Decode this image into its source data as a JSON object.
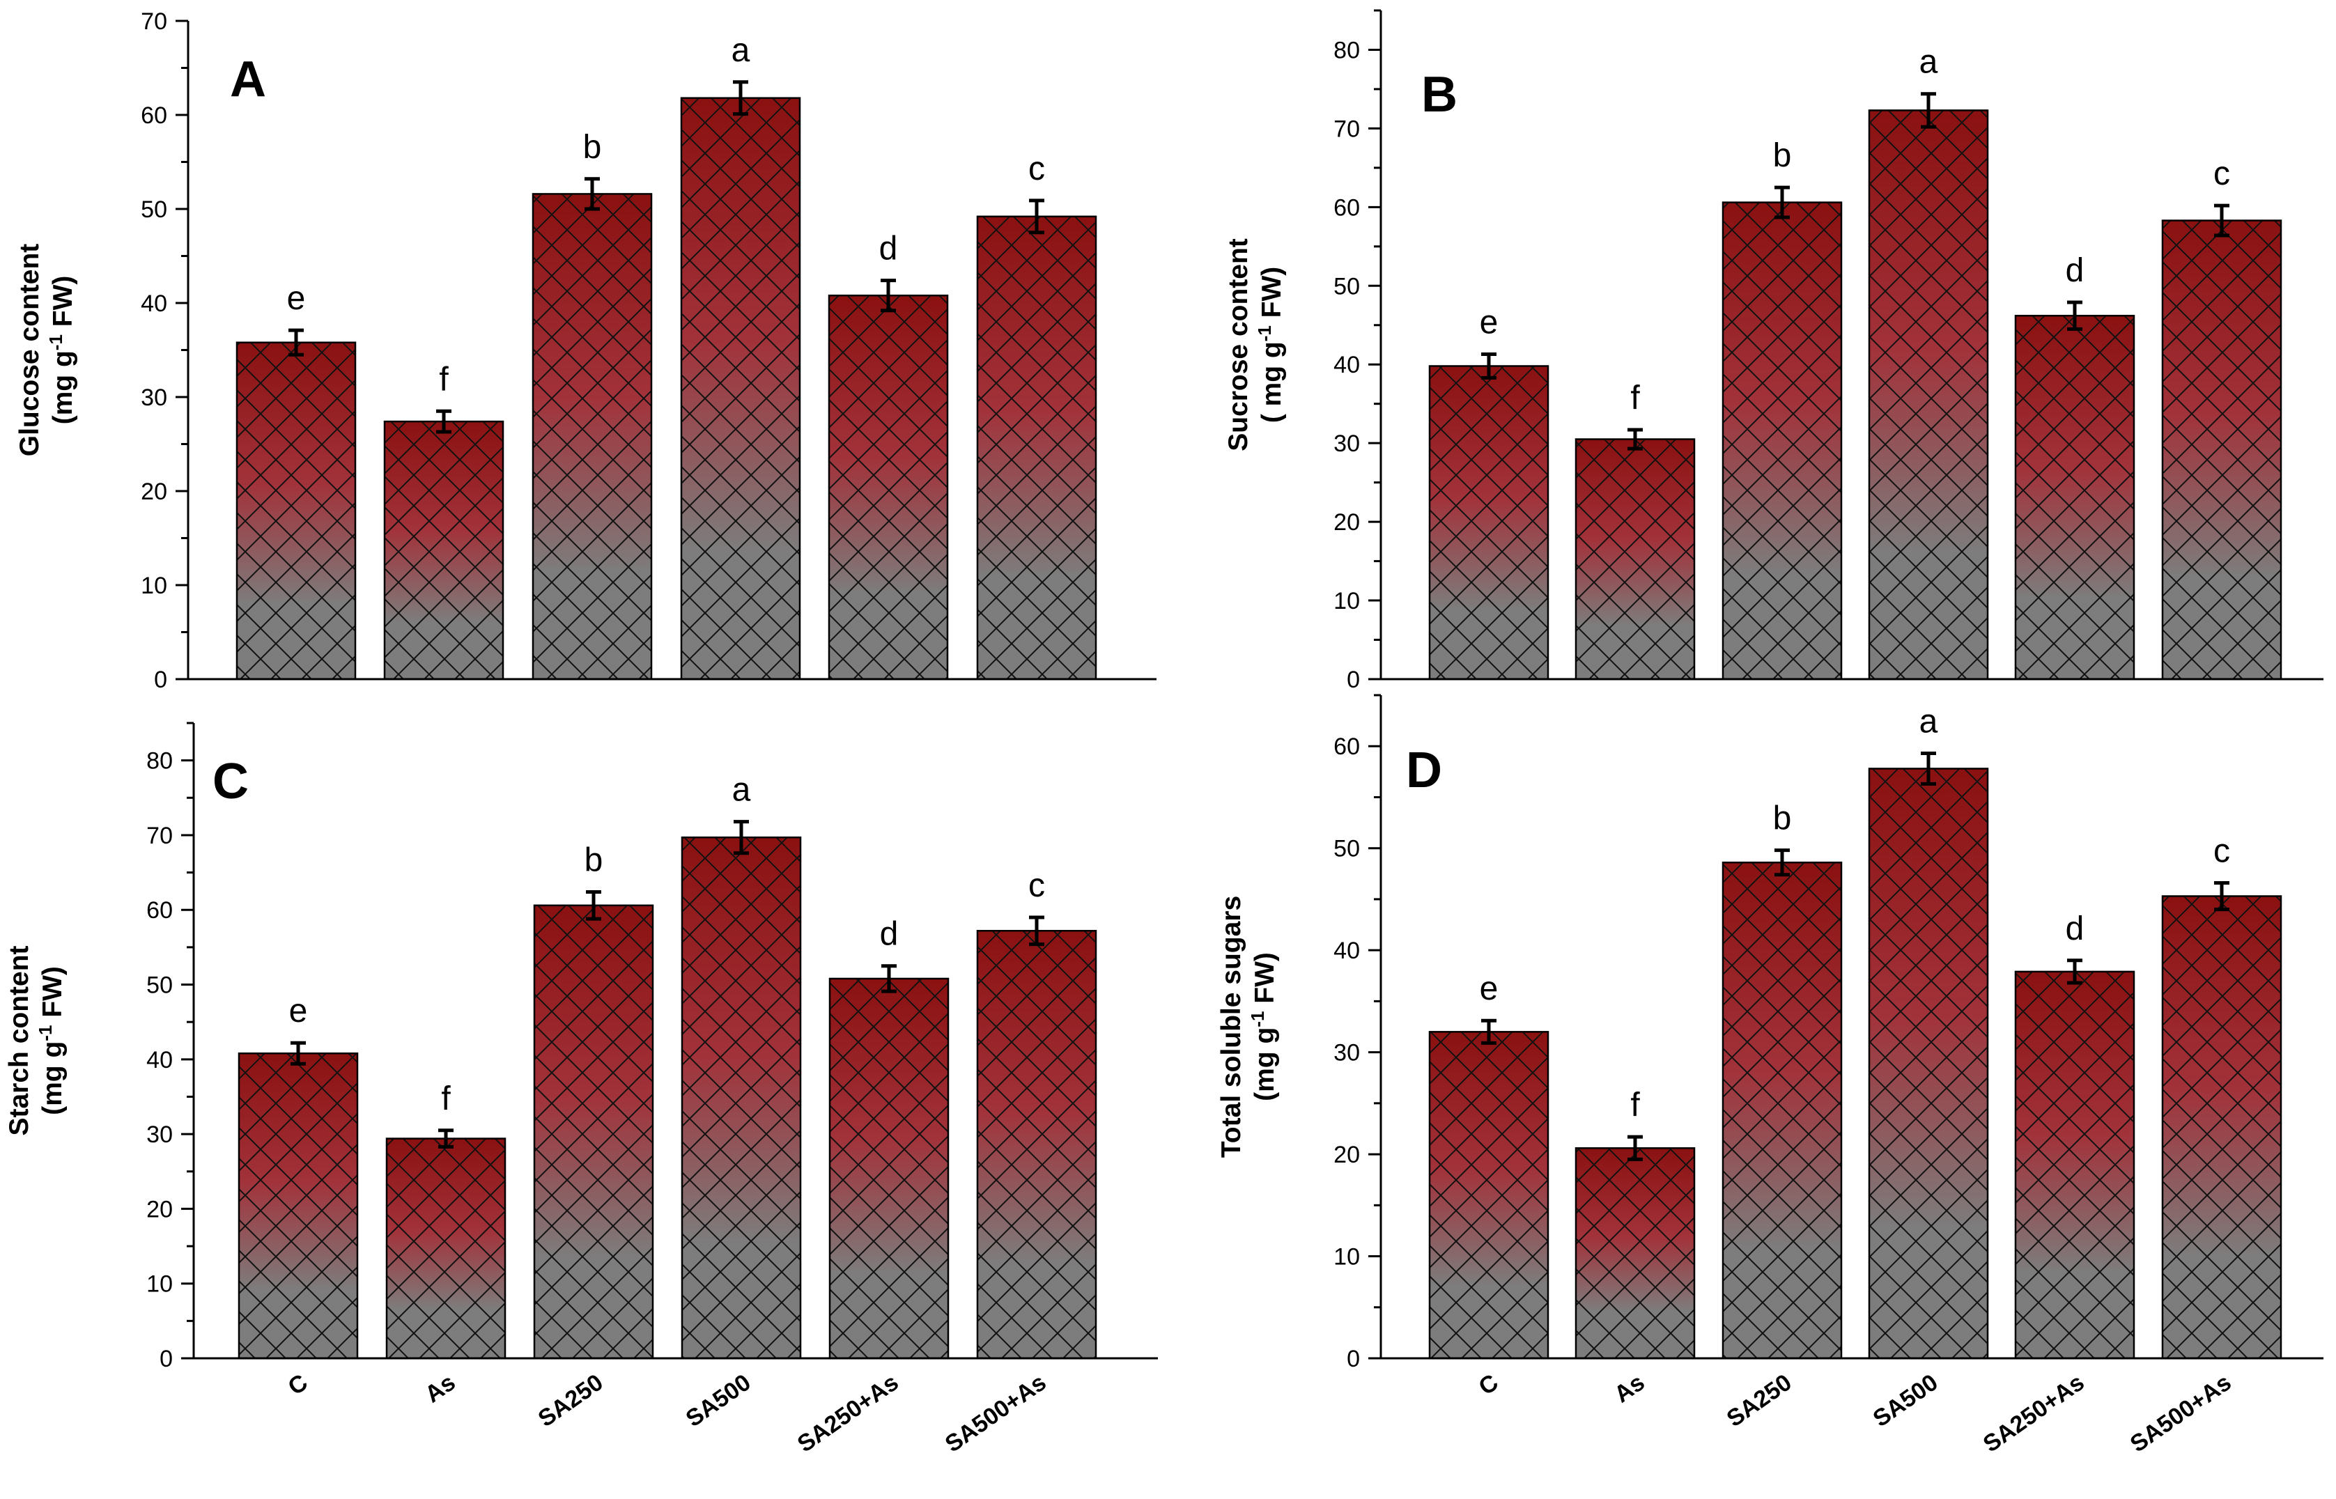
{
  "colors": {
    "bar_top": "#8b1111",
    "bar_mid": "#a2323a",
    "bar_bottom": "#7d7d7d",
    "hatch": "#111111"
  },
  "chart_data": [
    {
      "id": "A",
      "type": "bar",
      "panel_label": "A",
      "ylabel_line1": "Glucose content",
      "ylabel_pre": "(mg g",
      "ylabel_sup": "-1",
      "ylabel_post": " FW)",
      "categories": [
        "C",
        "As",
        "SA250",
        "SA500",
        "SA250+As",
        "SA500+As"
      ],
      "values": [
        35.8,
        27.4,
        51.6,
        61.8,
        40.8,
        49.2
      ],
      "errors": [
        1.3,
        1.1,
        1.6,
        1.7,
        1.6,
        1.7
      ],
      "significance": [
        "e",
        "f",
        "b",
        "a",
        "d",
        "c"
      ],
      "ylim": [
        0,
        70
      ],
      "yticks": [
        0,
        10,
        20,
        30,
        40,
        50,
        60,
        70
      ],
      "show_category_labels": false
    },
    {
      "id": "B",
      "type": "bar",
      "panel_label": "B",
      "ylabel_line1": "Sucrose content",
      "ylabel_pre": "( mg g",
      "ylabel_sup": "-1",
      "ylabel_post": " FW)",
      "categories": [
        "C",
        "As",
        "SA250",
        "SA500",
        "SA250+As",
        "SA500+As"
      ],
      "values": [
        39.8,
        30.5,
        60.6,
        72.3,
        46.2,
        58.3
      ],
      "errors": [
        1.5,
        1.2,
        1.9,
        2.1,
        1.7,
        1.9
      ],
      "significance": [
        "e",
        "f",
        "b",
        "a",
        "d",
        "c"
      ],
      "ylim": [
        0,
        85
      ],
      "yticks": [
        0,
        10,
        20,
        30,
        40,
        50,
        60,
        70,
        80
      ],
      "show_category_labels": false
    },
    {
      "id": "C",
      "type": "bar",
      "panel_label": "C",
      "ylabel_line1": "Starch content",
      "ylabel_pre": "(mg g",
      "ylabel_sup": "-1",
      "ylabel_post": " FW)",
      "categories": [
        "C",
        "As",
        "SA250",
        "SA500",
        "SA250+As",
        "SA500+As"
      ],
      "values": [
        40.8,
        29.4,
        60.6,
        69.7,
        50.8,
        57.2
      ],
      "errors": [
        1.4,
        1.1,
        1.8,
        2.1,
        1.7,
        1.8
      ],
      "significance": [
        "e",
        "f",
        "b",
        "a",
        "d",
        "c"
      ],
      "ylim": [
        0,
        85
      ],
      "yticks": [
        0,
        10,
        20,
        30,
        40,
        50,
        60,
        70,
        80
      ],
      "show_category_labels": true
    },
    {
      "id": "D",
      "type": "bar",
      "panel_label": "D",
      "ylabel_line1": "Total soluble sugars",
      "ylabel_pre": "(mg g",
      "ylabel_sup": "-1",
      "ylabel_post": " FW)",
      "categories": [
        "C",
        "As",
        "SA250",
        "SA500",
        "SA250+As",
        "SA500+As"
      ],
      "values": [
        32.0,
        20.6,
        48.6,
        57.8,
        37.9,
        45.3
      ],
      "errors": [
        1.1,
        1.1,
        1.2,
        1.5,
        1.1,
        1.3
      ],
      "significance": [
        "e",
        "f",
        "b",
        "a",
        "d",
        "c"
      ],
      "ylim": [
        0,
        65
      ],
      "yticks": [
        0,
        10,
        20,
        30,
        40,
        50,
        60
      ],
      "show_category_labels": true
    }
  ]
}
